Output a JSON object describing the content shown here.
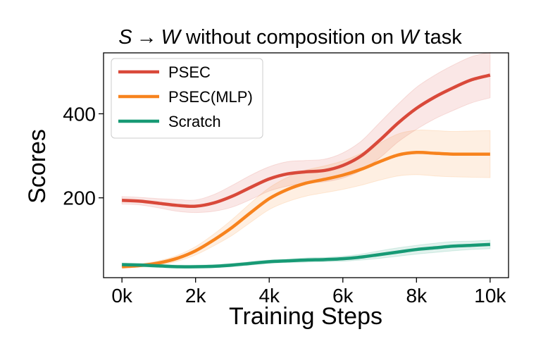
{
  "chart_data": {
    "type": "line",
    "title": {
      "pre": "S",
      "arrow": "→",
      "mid_var": "W",
      "middle": " without composition on ",
      "post_var": "W",
      "post": " task"
    },
    "xlabel": "Training Steps",
    "ylabel": "Scores",
    "xlim": [
      -500,
      10500
    ],
    "ylim": [
      10,
      545
    ],
    "x_ticks": [
      0,
      2000,
      4000,
      6000,
      8000,
      10000
    ],
    "x_tick_labels": [
      "0k",
      "2k",
      "4k",
      "6k",
      "8k",
      "10k"
    ],
    "y_ticks": [
      200,
      400
    ],
    "y_tick_labels": [
      "200",
      "400"
    ],
    "legend_position": "top-left",
    "x": [
      0,
      500,
      1000,
      1500,
      2000,
      2500,
      3000,
      3500,
      4000,
      4500,
      5000,
      5500,
      6000,
      6500,
      7000,
      7500,
      8000,
      8500,
      9000,
      9500,
      10000
    ],
    "series": [
      {
        "name": "PSEC",
        "color": "#d9493a",
        "values": [
          194,
          192,
          187,
          182,
          180,
          188,
          204,
          225,
          245,
          257,
          262,
          265,
          277,
          300,
          337,
          378,
          413,
          440,
          462,
          481,
          492
        ],
        "lower": [
          185,
          183,
          176,
          168,
          165,
          168,
          178,
          196,
          216,
          228,
          235,
          238,
          247,
          265,
          295,
          333,
          363,
          388,
          408,
          426,
          438
        ],
        "upper": [
          203,
          201,
          198,
          196,
          195,
          208,
          230,
          254,
          274,
          286,
          289,
          292,
          307,
          335,
          379,
          423,
          463,
          492,
          516,
          536,
          546
        ]
      },
      {
        "name": "PSEC(MLP)",
        "color": "#f7831e",
        "values": [
          36,
          39,
          45,
          56,
          74,
          100,
          130,
          165,
          198,
          220,
          235,
          244,
          254,
          268,
          286,
          302,
          308,
          306,
          304,
          304,
          304
        ],
        "lower": [
          33,
          35,
          40,
          49,
          64,
          86,
          111,
          142,
          172,
          191,
          204,
          212,
          220,
          230,
          242,
          252,
          255,
          252,
          250,
          249,
          248
        ],
        "upper": [
          39,
          43,
          50,
          63,
          84,
          114,
          149,
          188,
          224,
          249,
          266,
          276,
          288,
          306,
          330,
          352,
          361,
          360,
          358,
          359,
          360
        ]
      },
      {
        "name": "Scratch",
        "color": "#179a75",
        "values": [
          41,
          40,
          38,
          36,
          36,
          37,
          40,
          44,
          48,
          50,
          52,
          53,
          55,
          59,
          65,
          71,
          77,
          81,
          85,
          87,
          89
        ],
        "lower": [
          37,
          36,
          34,
          33,
          33,
          34,
          36,
          40,
          44,
          46,
          47,
          48,
          49,
          52,
          56,
          61,
          66,
          70,
          74,
          77,
          79
        ],
        "upper": [
          45,
          44,
          42,
          40,
          40,
          41,
          44,
          48,
          52,
          54,
          57,
          58,
          61,
          66,
          74,
          81,
          87,
          92,
          96,
          97,
          99
        ]
      }
    ]
  }
}
